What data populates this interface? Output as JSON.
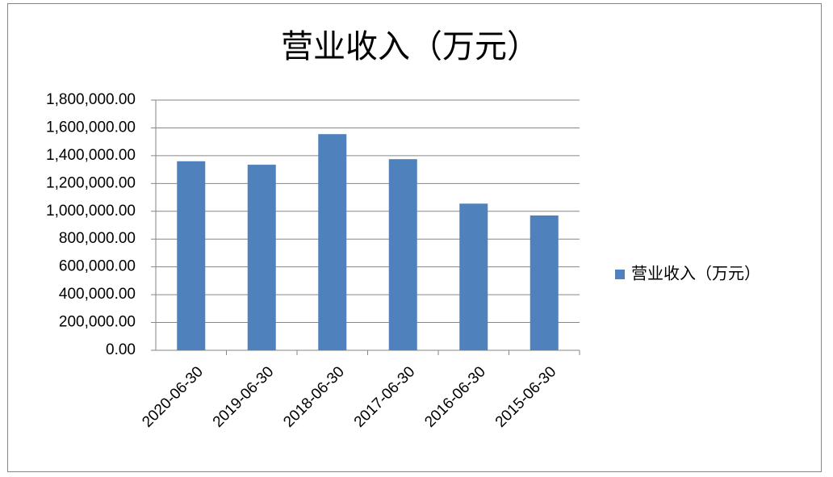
{
  "chart_data": {
    "type": "bar",
    "title": "营业收入（万元）",
    "categories": [
      "2020-06-30",
      "2019-06-30",
      "2018-06-30",
      "2017-06-30",
      "2016-06-30",
      "2015-06-30"
    ],
    "series": [
      {
        "name": "营业收入（万元）",
        "color": "#4f81bd",
        "values": [
          1360000,
          1335000,
          1555000,
          1375000,
          1055000,
          970000
        ]
      }
    ],
    "ylim": [
      0,
      1800000
    ],
    "yticks": [
      {
        "value": 0,
        "label": "0.00"
      },
      {
        "value": 200000,
        "label": "200,000.00"
      },
      {
        "value": 400000,
        "label": "400,000.00"
      },
      {
        "value": 600000,
        "label": "600,000.00"
      },
      {
        "value": 800000,
        "label": "800,000.00"
      },
      {
        "value": 1000000,
        "label": "1,000,000.00"
      },
      {
        "value": 1200000,
        "label": "1,200,000.00"
      },
      {
        "value": 1400000,
        "label": "1,400,000.00"
      },
      {
        "value": 1600000,
        "label": "1,600,000.00"
      },
      {
        "value": 1800000,
        "label": "1,800,000.00"
      }
    ],
    "grid": true,
    "legend": "right"
  }
}
